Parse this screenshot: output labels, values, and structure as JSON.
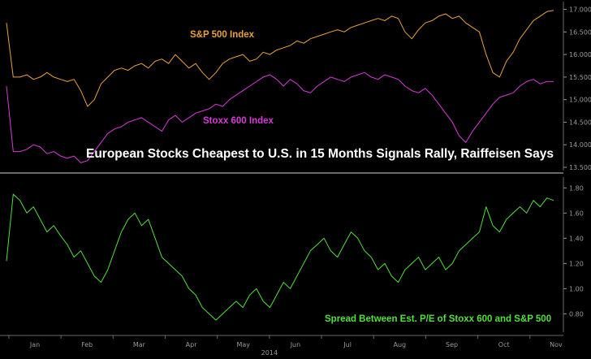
{
  "headline": "European Stocks Cheapest to U.S. in 15 Months Signals Rally, Raiffeisen Says",
  "chart_data": [
    {
      "type": "line",
      "title": "",
      "ylim": [
        13.5,
        17.1
      ],
      "y_ticks": [
        "17.0000",
        "16.5000",
        "16.0000",
        "15.5000",
        "15.0000",
        "14.5000",
        "14.0000",
        "13.5000"
      ],
      "y_tick_values": [
        17.0,
        16.5,
        16.0,
        15.5,
        15.0,
        14.5,
        14.0,
        13.5
      ],
      "grid": false,
      "series": [
        {
          "name": "S&P 500 Index",
          "color": "#e8a33c",
          "values": [
            16.7,
            15.5,
            15.5,
            15.55,
            15.45,
            15.5,
            15.6,
            15.5,
            15.45,
            15.4,
            15.45,
            15.2,
            14.85,
            15.0,
            15.35,
            15.5,
            15.65,
            15.7,
            15.65,
            15.75,
            15.8,
            15.7,
            15.85,
            15.9,
            15.8,
            16.0,
            15.85,
            15.7,
            15.8,
            15.6,
            15.45,
            15.6,
            15.8,
            15.9,
            15.95,
            16.0,
            15.85,
            15.9,
            16.05,
            16.0,
            16.1,
            16.15,
            16.2,
            16.3,
            16.25,
            16.35,
            16.4,
            16.45,
            16.5,
            16.55,
            16.5,
            16.6,
            16.65,
            16.7,
            16.75,
            16.8,
            16.75,
            16.85,
            16.8,
            16.5,
            16.35,
            16.55,
            16.7,
            16.75,
            16.85,
            16.9,
            16.8,
            16.85,
            16.7,
            16.6,
            16.5,
            16.0,
            15.6,
            15.5,
            15.85,
            16.05,
            16.35,
            16.55,
            16.75,
            16.85,
            16.95,
            16.98
          ]
        },
        {
          "name": "Stoxx 600 Index",
          "color": "#d93ad9",
          "values": [
            15.3,
            13.85,
            13.85,
            13.9,
            14.0,
            13.95,
            13.8,
            13.85,
            13.75,
            13.7,
            13.75,
            13.6,
            13.65,
            13.85,
            14.05,
            14.25,
            14.35,
            14.4,
            14.5,
            14.55,
            14.6,
            14.5,
            14.4,
            14.3,
            14.55,
            14.65,
            14.5,
            14.6,
            14.7,
            14.75,
            14.8,
            14.9,
            14.85,
            15.0,
            15.1,
            15.2,
            15.3,
            15.4,
            15.5,
            15.55,
            15.45,
            15.3,
            15.45,
            15.35,
            15.2,
            15.15,
            15.3,
            15.4,
            15.5,
            15.45,
            15.4,
            15.5,
            15.55,
            15.6,
            15.5,
            15.45,
            15.55,
            15.5,
            15.45,
            15.3,
            15.2,
            15.15,
            15.25,
            15.1,
            14.9,
            14.7,
            14.5,
            14.2,
            14.05,
            14.3,
            14.5,
            14.7,
            14.9,
            15.05,
            15.1,
            15.15,
            15.3,
            15.4,
            15.45,
            15.35,
            15.4,
            15.4
          ]
        }
      ]
    },
    {
      "type": "line",
      "title": "Spread Between Est. P/E of Stoxx 600 and S&P 500",
      "ylim": [
        0.68,
        1.86
      ],
      "y_ticks": [
        "1.80",
        "1.60",
        "1.40",
        "1.20",
        "1.00",
        "0.80"
      ],
      "y_tick_values": [
        1.8,
        1.6,
        1.4,
        1.2,
        1.0,
        0.8
      ],
      "grid": false,
      "x_tick_labels": [
        "Jan",
        "Feb",
        "Mar",
        "Apr",
        "May",
        "Jun",
        "Jul",
        "Aug",
        "Sep",
        "Oct",
        "Nov"
      ],
      "x_sublabel": "2014",
      "series": [
        {
          "name": "Spread Between Est. P/E of Stoxx 600 and S&P 500",
          "color": "#52e03a",
          "values": [
            1.22,
            1.75,
            1.7,
            1.6,
            1.65,
            1.55,
            1.45,
            1.5,
            1.42,
            1.35,
            1.25,
            1.3,
            1.2,
            1.1,
            1.05,
            1.15,
            1.3,
            1.45,
            1.55,
            1.6,
            1.5,
            1.55,
            1.4,
            1.25,
            1.2,
            1.15,
            1.1,
            1.0,
            0.95,
            0.85,
            0.8,
            0.75,
            0.8,
            0.85,
            0.9,
            0.85,
            0.95,
            1.0,
            0.9,
            0.85,
            0.95,
            1.05,
            1.0,
            1.1,
            1.2,
            1.3,
            1.35,
            1.4,
            1.3,
            1.25,
            1.35,
            1.45,
            1.4,
            1.3,
            1.25,
            1.15,
            1.2,
            1.1,
            1.05,
            1.15,
            1.2,
            1.25,
            1.15,
            1.2,
            1.25,
            1.15,
            1.2,
            1.3,
            1.35,
            1.4,
            1.45,
            1.65,
            1.5,
            1.45,
            1.55,
            1.6,
            1.65,
            1.6,
            1.7,
            1.65,
            1.72,
            1.7
          ]
        }
      ]
    }
  ]
}
